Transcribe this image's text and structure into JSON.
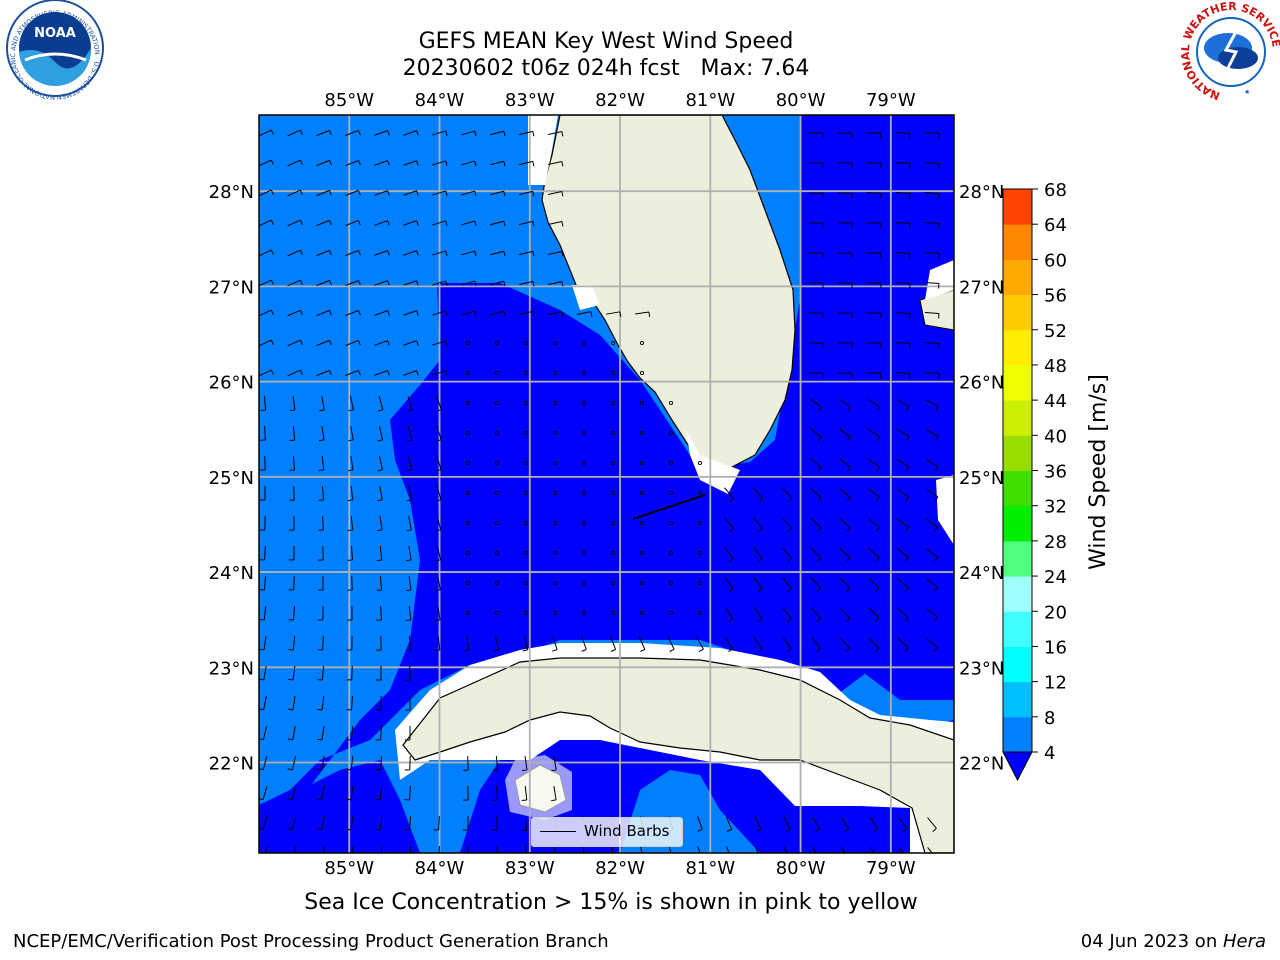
{
  "title": {
    "line1": "GEFS MEAN Key West Wind Speed",
    "line2": "20230602 t06z 024h fcst   Max: 7.64"
  },
  "map": {
    "lon_range": [
      -86.0,
      -78.3
    ],
    "lat_range": [
      21.05,
      28.8
    ],
    "lon_ticks": [
      {
        "lon": -85,
        "label": "85°W"
      },
      {
        "lon": -84,
        "label": "84°W"
      },
      {
        "lon": -83,
        "label": "83°W"
      },
      {
        "lon": -82,
        "label": "82°W"
      },
      {
        "lon": -81,
        "label": "81°W"
      },
      {
        "lon": -80,
        "label": "80°W"
      },
      {
        "lon": -79,
        "label": "79°W"
      }
    ],
    "lat_ticks": [
      {
        "lat": 28,
        "label": "28°N"
      },
      {
        "lat": 27,
        "label": "27°N"
      },
      {
        "lat": 26,
        "label": "26°N"
      },
      {
        "lat": 25,
        "label": "25°N"
      },
      {
        "lat": 24,
        "label": "24°N"
      },
      {
        "lat": 23,
        "label": "23°N"
      },
      {
        "lat": 22,
        "label": "22°N"
      }
    ],
    "gridlines": true,
    "colors": {
      "ocean_4_8": "#0000ff",
      "ocean_below_4": "#0080ff",
      "land": "#eeeedc",
      "grid": "#b0b0b0"
    },
    "legend": {
      "label": "Wind Barbs",
      "placement": "lower-center"
    }
  },
  "colorbar": {
    "label": "Wind Speed [m/s]",
    "ticks": [
      4,
      8,
      12,
      16,
      20,
      24,
      28,
      32,
      36,
      40,
      44,
      48,
      52,
      56,
      60,
      64,
      68
    ],
    "colors": [
      "#0080ff",
      "#00bfff",
      "#00ffff",
      "#40ffff",
      "#a0ffff",
      "#50ff80",
      "#00ee00",
      "#40dd00",
      "#99dd00",
      "#ccee00",
      "#eeff00",
      "#ffee00",
      "#ffcc00",
      "#ffaa00",
      "#ff8800",
      "#ff4400",
      "#ff0000"
    ],
    "extend_min_color": "#0000ff"
  },
  "caption": "Sea Ice Concentration > 15% is shown in pink to yellow",
  "footer": {
    "left": "NCEP/EMC/Verification Post Processing Product Generation Branch",
    "right_date": "04 Jun 2023 on ",
    "right_host": "Hera"
  },
  "logos": {
    "noaa_text": "NOAA",
    "noaa_ring": "NATIONAL OCEANIC AND ATMOSPHERIC ADMINISTRATION · U.S. DEPARTMENT OF COMMERCE",
    "nws_ring": "NATIONAL WEATHER SERVICE"
  }
}
